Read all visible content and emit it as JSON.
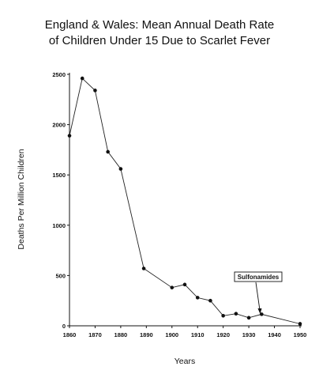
{
  "chart_data": {
    "type": "line",
    "title_lines": [
      "England & Wales: Mean Annual Death Rate",
      "of Children Under 15 Due to Scarlet Fever"
    ],
    "xlabel": "Years",
    "ylabel": "Deaths Per Million Children",
    "x_ticks": [
      1860,
      1870,
      1880,
      1890,
      1900,
      1910,
      1920,
      1930,
      1940,
      1950
    ],
    "y_ticks": [
      0,
      500,
      1000,
      1500,
      2000,
      2500
    ],
    "xlim": [
      1860,
      1950
    ],
    "ylim": [
      0,
      2500
    ],
    "grid": false,
    "series": [
      {
        "x": [
          1860,
          1865,
          1870,
          1875,
          1880,
          1889,
          1900,
          1905,
          1910,
          1915,
          1920,
          1925,
          1930,
          1935,
          1950
        ],
        "y": [
          1890,
          2460,
          2340,
          1730,
          1560,
          570,
          380,
          410,
          280,
          250,
          100,
          120,
          80,
          115,
          20
        ]
      }
    ],
    "annotations": [
      {
        "text": "Sulfonamides",
        "x": 1935,
        "y": 115
      }
    ],
    "colors": {
      "line": "#222222",
      "marker": "#111111"
    }
  }
}
